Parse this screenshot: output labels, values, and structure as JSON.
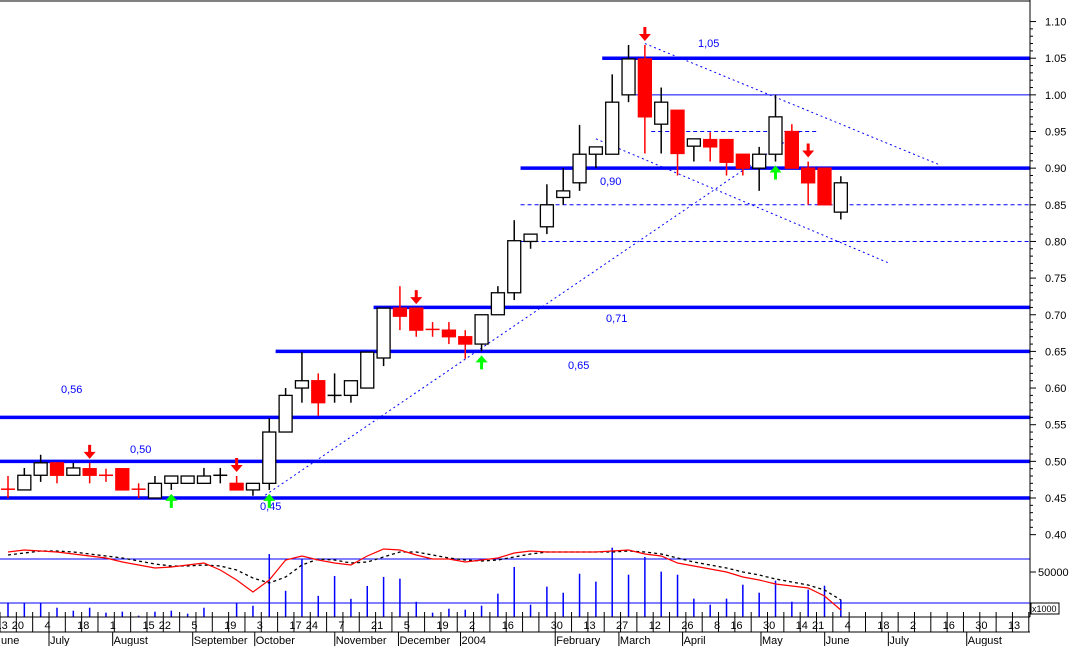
{
  "chart_data": {
    "type": "candlestick",
    "y_axis": {
      "ylim": [
        0.4,
        1.1
      ],
      "tick_labels": [
        "1.10",
        "1.05",
        "1.00",
        "0.95",
        "0.90",
        "0.85",
        "0.80",
        "0.75",
        "0.70",
        "0.65",
        "0.60",
        "0.55",
        "0.50",
        "0.45",
        "0.40"
      ],
      "tick_values": [
        1.1,
        1.05,
        1.0,
        0.95,
        0.9,
        0.85,
        0.8,
        0.75,
        0.7,
        0.65,
        0.6,
        0.55,
        0.5,
        0.45,
        0.4
      ]
    },
    "candles_ohlc": [
      [
        0.462,
        0.48,
        0.45,
        0.461
      ],
      [
        0.461,
        0.491,
        0.461,
        0.481
      ],
      [
        0.481,
        0.509,
        0.472,
        0.498
      ],
      [
        0.498,
        0.498,
        0.47,
        0.481
      ],
      [
        0.481,
        0.498,
        0.481,
        0.491
      ],
      [
        0.49,
        0.498,
        0.47,
        0.481
      ],
      [
        0.481,
        0.49,
        0.472,
        0.48
      ],
      [
        0.49,
        0.49,
        0.461,
        0.461
      ],
      [
        0.462,
        0.47,
        0.45,
        0.461
      ],
      [
        0.45,
        0.48,
        0.45,
        0.47
      ],
      [
        0.47,
        0.48,
        0.461,
        0.48
      ],
      [
        0.47,
        0.48,
        0.47,
        0.48
      ],
      [
        0.47,
        0.491,
        0.47,
        0.48
      ],
      [
        0.481,
        0.491,
        0.47,
        0.481
      ],
      [
        0.47,
        0.48,
        0.461,
        0.461
      ],
      [
        0.461,
        0.47,
        0.453,
        0.47
      ],
      [
        0.47,
        0.559,
        0.461,
        0.54
      ],
      [
        0.54,
        0.6,
        0.54,
        0.59
      ],
      [
        0.6,
        0.649,
        0.58,
        0.61
      ],
      [
        0.61,
        0.62,
        0.562,
        0.58
      ],
      [
        0.59,
        0.62,
        0.58,
        0.59
      ],
      [
        0.59,
        0.61,
        0.58,
        0.61
      ],
      [
        0.6,
        0.649,
        0.6,
        0.649
      ],
      [
        0.641,
        0.709,
        0.63,
        0.709
      ],
      [
        0.709,
        0.739,
        0.679,
        0.698
      ],
      [
        0.709,
        0.709,
        0.67,
        0.679
      ],
      [
        0.68,
        0.69,
        0.67,
        0.679
      ],
      [
        0.679,
        0.69,
        0.66,
        0.67
      ],
      [
        0.67,
        0.679,
        0.64,
        0.66
      ],
      [
        0.66,
        0.7,
        0.65,
        0.7
      ],
      [
        0.7,
        0.739,
        0.7,
        0.73
      ],
      [
        0.73,
        0.829,
        0.72,
        0.801
      ],
      [
        0.8,
        0.81,
        0.79,
        0.81
      ],
      [
        0.82,
        0.878,
        0.81,
        0.85
      ],
      [
        0.86,
        0.9,
        0.85,
        0.869
      ],
      [
        0.88,
        0.959,
        0.869,
        0.919
      ],
      [
        0.919,
        0.929,
        0.9,
        0.929
      ],
      [
        0.919,
        1.028,
        0.919,
        0.99
      ],
      [
        1.0,
        1.068,
        0.99,
        1.049
      ],
      [
        1.049,
        1.068,
        0.92,
        0.97
      ],
      [
        0.96,
        1.01,
        0.92,
        0.99
      ],
      [
        0.979,
        0.979,
        0.89,
        0.92
      ],
      [
        0.93,
        0.94,
        0.909,
        0.94
      ],
      [
        0.939,
        0.949,
        0.909,
        0.929
      ],
      [
        0.939,
        0.939,
        0.89,
        0.908
      ],
      [
        0.919,
        0.919,
        0.89,
        0.9
      ],
      [
        0.9,
        0.929,
        0.869,
        0.919
      ],
      [
        0.919,
        1.0,
        0.909,
        0.97
      ],
      [
        0.95,
        0.96,
        0.9,
        0.9
      ],
      [
        0.9,
        0.909,
        0.85,
        0.88
      ],
      [
        0.9,
        0.9,
        0.85,
        0.85
      ],
      [
        0.84,
        0.889,
        0.83,
        0.88
      ]
    ],
    "sell_signals_candle_index": [
      5,
      14,
      25,
      39,
      49
    ],
    "buy_signals_candle_index": [
      10,
      16,
      29,
      47
    ],
    "support_resistance": [
      {
        "price": 0.45,
        "style": "thick",
        "label": "0,45"
      },
      {
        "price": 0.5,
        "style": "thick",
        "label": "0,50"
      },
      {
        "price": 0.56,
        "style": "thick",
        "label": "0,56"
      },
      {
        "price": 0.65,
        "style": "thick",
        "label": "0,65",
        "from_candle": 17
      },
      {
        "price": 0.71,
        "style": "thick",
        "label": "0,71",
        "from_candle": 23
      },
      {
        "price": 0.9,
        "style": "thick",
        "label": "0,90",
        "from_candle": 32
      },
      {
        "price": 1.05,
        "style": "thick",
        "label": "1,05",
        "from_candle": 37
      },
      {
        "price": 1.0,
        "style": "thin",
        "from_candle": 39
      },
      {
        "price": 0.95,
        "style": "dashed",
        "from_candle": 40,
        "to_candle": 49
      },
      {
        "price": 0.85,
        "style": "dashed",
        "from_candle": 32
      },
      {
        "price": 0.8,
        "style": "dashed",
        "from_candle": 32
      }
    ],
    "trendlines": [
      {
        "from": [
          15.5,
          0.45
        ],
        "to": [
          48.5,
          0.95
        ]
      },
      {
        "from": [
          39,
          1.07
        ],
        "to": [
          57,
          0.905
        ]
      },
      {
        "from": [
          36,
          0.94
        ],
        "to": [
          54,
          0.77
        ]
      }
    ],
    "volume": {
      "unit_label": "x1000",
      "tick_label": "50000",
      "tick_value": 50000,
      "values": [
        15400,
        15400,
        15400,
        10300,
        7000,
        10300,
        4800,
        5900,
        1500,
        5900,
        7000,
        3700,
        10300,
        0,
        15400,
        12500,
        69900,
        29100,
        64000,
        23500,
        45600,
        20200,
        34500,
        44500,
        42600,
        16900,
        4800,
        9200,
        8100,
        12600,
        25900,
        55600,
        13700,
        33700,
        27000,
        48100,
        39300,
        77000,
        47000,
        66700,
        50400,
        47000,
        20400,
        13700,
        20400,
        35900,
        27000,
        40400,
        17000,
        30400,
        34800,
        19300
      ]
    },
    "oscillator": {
      "fast": [
        63,
        65,
        64,
        63,
        61,
        59,
        57,
        53,
        50,
        47,
        48,
        50,
        52,
        45,
        35,
        23,
        35,
        55,
        59,
        55,
        52,
        50,
        59,
        66,
        65,
        60,
        56,
        56,
        53,
        55,
        57,
        62,
        64,
        63,
        63,
        63,
        63,
        64,
        65,
        61,
        59,
        52,
        49,
        46,
        43,
        38,
        35,
        31,
        29,
        27,
        19,
        5
      ],
      "slow": [
        60,
        62,
        64,
        64,
        63,
        61,
        59,
        57,
        54,
        51,
        49,
        49,
        50,
        49,
        45,
        37,
        32,
        38,
        50,
        56,
        55,
        52,
        53,
        58,
        63,
        63,
        60,
        57,
        55,
        54,
        55,
        58,
        61,
        63,
        63,
        63,
        63,
        63,
        64,
        63,
        61,
        57,
        53,
        50,
        47,
        43,
        40,
        36,
        33,
        30,
        25,
        15
      ]
    },
    "x_axis": {
      "day_labels": [
        "13",
        "20",
        "4",
        "18",
        "1",
        "15",
        "22",
        "5",
        "19",
        "3",
        "17",
        "24",
        "7",
        "21",
        "5",
        "19",
        "2",
        "16",
        "30",
        "13",
        "27",
        "12",
        "26",
        "8",
        "16",
        "30",
        "14",
        "21",
        "4",
        "18",
        "2",
        "16",
        "30",
        "13"
      ],
      "day_label_week": [
        -0.4,
        0.6,
        2.6,
        4.6,
        6.6,
        8.6,
        9.6,
        11.6,
        13.6,
        15.6,
        17.6,
        18.6,
        20.6,
        22.6,
        24.6,
        26.6,
        28.6,
        30.6,
        33.6,
        35.6,
        37.6,
        39.6,
        41.6,
        43.6,
        44.6,
        46.6,
        48.6,
        49.6,
        51.6,
        53.6,
        55.6,
        57.6,
        59.6,
        61.6
      ],
      "month_labels": [
        "une",
        "July",
        "August",
        "September",
        "October",
        "November",
        "December",
        "2004",
        "February",
        "March",
        "April",
        "May",
        "June",
        "July",
        "August"
      ],
      "month_label_week": [
        -0.5,
        3,
        6.9,
        11.8,
        15.6,
        20.5,
        24.4,
        28.2,
        34,
        37.9,
        41.8,
        46.6,
        50.5,
        54.4,
        59.2
      ]
    },
    "colors": {
      "up": "#ffffff",
      "down": "#ff0000",
      "levels": "#0000ff",
      "buy": "#00ff00",
      "sell": "#ff0000",
      "volume": "#0000ff",
      "slow": "#000000"
    }
  }
}
